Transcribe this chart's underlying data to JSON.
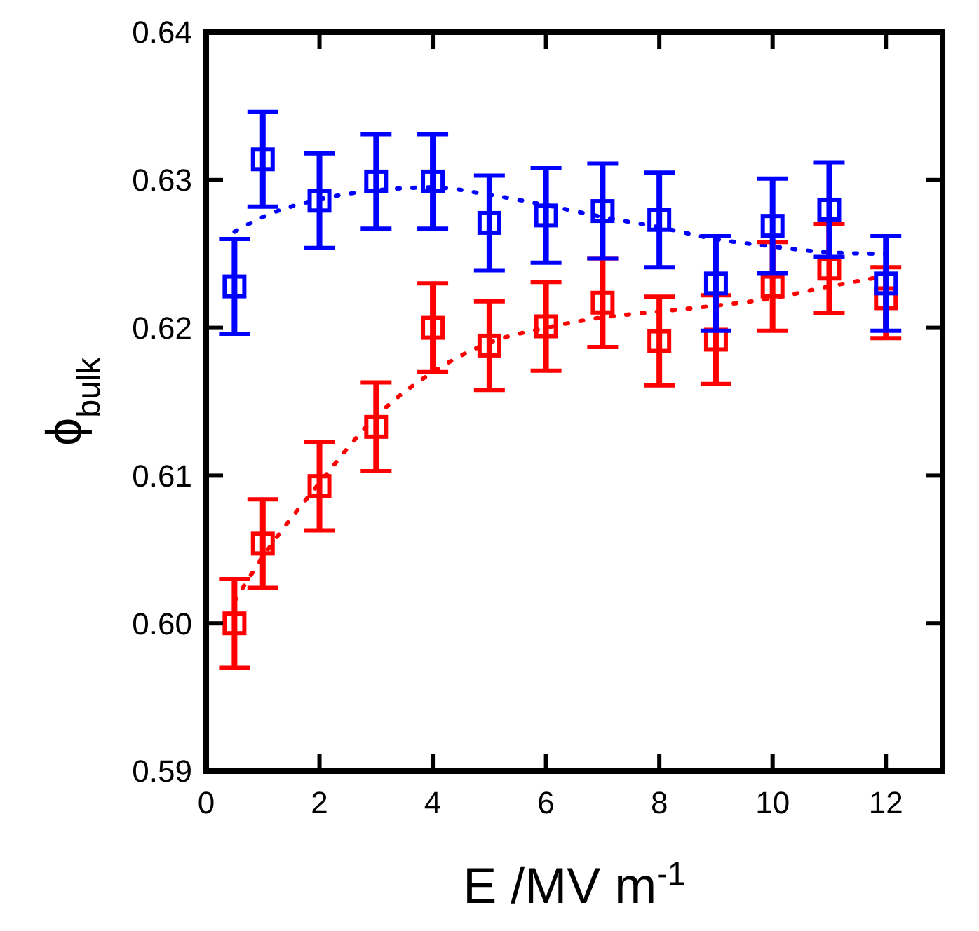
{
  "chart_data": {
    "type": "scatter",
    "xlabel": "E /MV m$^{-1}$",
    "ylabel": "ϕ$_{bulk}$",
    "xlim": [
      0,
      13
    ],
    "xticks": [
      0,
      2,
      4,
      6,
      8,
      10,
      12
    ],
    "ylim": [
      0.59,
      0.64
    ],
    "yticks": [
      {
        "value": 0.59,
        "label": "0.59"
      },
      {
        "value": 0.6,
        "label": "0.60"
      },
      {
        "value": 0.61,
        "label": "0.61"
      },
      {
        "value": 0.62,
        "label": "0.62"
      },
      {
        "value": 0.63,
        "label": "0.63"
      },
      {
        "value": 0.64,
        "label": "0.64"
      }
    ],
    "marker": "square",
    "grid": false,
    "series": [
      {
        "type": "line",
        "color": "#0000ff",
        "line_style": "dotted",
        "marker": "none",
        "x": [
          0.5,
          1,
          2,
          3,
          4,
          5,
          6,
          7,
          8,
          9,
          10,
          11,
          12
        ],
        "values": [
          0.6265,
          0.6275,
          0.6287,
          0.6293,
          0.6295,
          0.629,
          0.6283,
          0.6275,
          0.6268,
          0.626,
          0.6255,
          0.6251,
          0.625
        ]
      },
      {
        "type": "line",
        "color": "#ff0000",
        "line_style": "dotted",
        "marker": "none",
        "x": [
          0.5,
          1,
          2,
          3,
          4,
          5,
          6,
          7,
          8,
          9,
          10,
          11,
          12
        ],
        "values": [
          0.6015,
          0.6045,
          0.6095,
          0.614,
          0.617,
          0.619,
          0.62,
          0.6207,
          0.6211,
          0.6215,
          0.622,
          0.6228,
          0.6235
        ]
      },
      {
        "color": "#ff0000",
        "x": [
          0.5,
          1,
          2,
          3,
          4,
          5,
          6,
          7,
          8,
          9,
          10,
          11,
          12
        ],
        "values": [
          0.6,
          0.6054,
          0.6093,
          0.6133,
          0.62,
          0.6188,
          0.6201,
          0.6217,
          0.6191,
          0.6192,
          0.6228,
          0.624,
          0.622
        ],
        "errors": [
          0.003,
          0.003,
          0.003,
          0.003,
          0.003,
          0.003,
          0.003,
          0.003,
          0.003,
          0.003,
          0.003,
          0.003,
          [
            0.6193,
            0.6241
          ]
        ]
      },
      {
        "color": "#0000ff",
        "x": [
          0.5,
          1,
          2,
          3,
          4,
          5,
          6,
          7,
          8,
          9,
          10,
          11,
          12
        ],
        "values": [
          0.6228,
          0.6314,
          0.6286,
          0.6299,
          0.6299,
          0.6271,
          0.6276,
          0.6279,
          0.6273,
          0.623,
          0.6269,
          0.628,
          0.623
        ],
        "errors": [
          0.0032,
          0.0032,
          0.0032,
          0.0032,
          0.0032,
          0.0032,
          0.0032,
          0.0032,
          0.0032,
          0.0032,
          0.0032,
          0.0032,
          0.0032
        ]
      }
    ]
  }
}
